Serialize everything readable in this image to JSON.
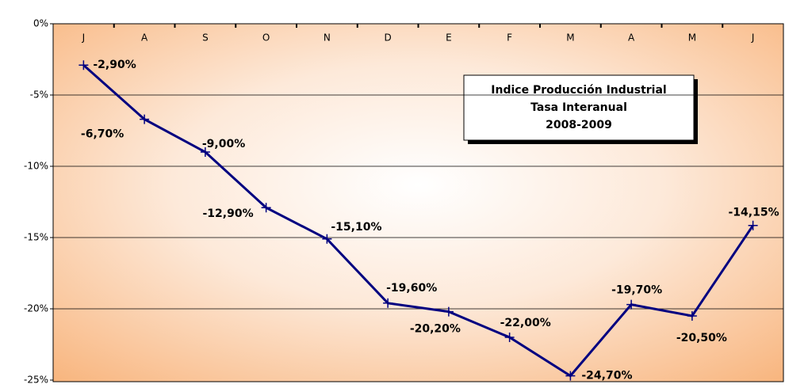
{
  "chart_data": {
    "type": "line",
    "title_lines": [
      "Indice Producción Industrial",
      "Tasa Interanual",
      "2008-2009"
    ],
    "categories": [
      "J",
      "A",
      "S",
      "O",
      "N",
      "D",
      "E",
      "F",
      "M",
      "A",
      "M",
      "J"
    ],
    "series": [
      {
        "color": "#000080",
        "values": [
          -2.9,
          -6.7,
          -9.0,
          -12.9,
          -15.1,
          -19.6,
          -20.2,
          -22.0,
          -24.7,
          -19.7,
          -20.5,
          -14.15
        ],
        "value_labels": [
          "-2,90%",
          "-6,70%",
          "-9,00%",
          "-12,90%",
          "-15,10%",
          "-19,60%",
          "-20,20%",
          "-22,00%",
          "-24,70%",
          "-19,70%",
          "-20,50%",
          "-14,15%"
        ]
      }
    ],
    "ylim": [
      -25,
      0
    ],
    "yticks": [
      {
        "value": 0,
        "label": "0%"
      },
      {
        "value": -5,
        "label": "-5%"
      },
      {
        "value": -10,
        "label": "-10%"
      },
      {
        "value": -15,
        "label": "-15%"
      },
      {
        "value": -20,
        "label": "-20%"
      },
      {
        "value": -25,
        "label": "-25%"
      }
    ],
    "grid": true
  }
}
